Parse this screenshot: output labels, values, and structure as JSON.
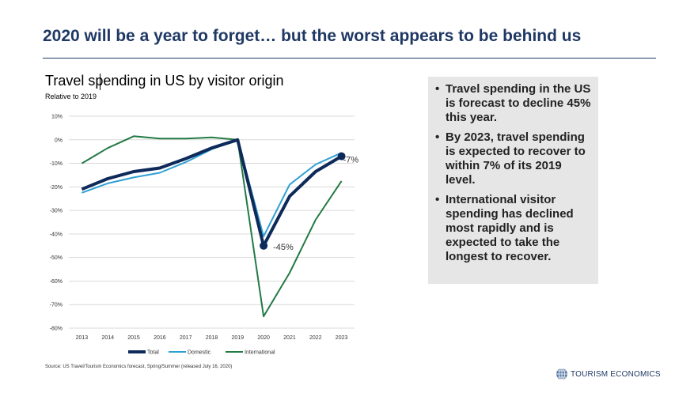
{
  "slide": {
    "title": "2020 will be a year to forget… but the worst appears to be behind us",
    "source": "Source: US Travel/Tourism Economics forecast, Spring/Summer (released July 16, 2020)",
    "logo_text": "TOURISM ECONOMICS",
    "logo_icon": "globe-icon"
  },
  "bullets": [
    "Travel spending in the US is forecast to decline 45% this year.",
    "By 2023, travel spending is expected to recover to within 7% of its 2019 level.",
    "International visitor spending has declined most rapidly and is expected to take the longest to recover."
  ],
  "chart_data": {
    "type": "line",
    "title": "Travel spending in US by visitor origin",
    "subtitle": "Relative to 2019",
    "categories": [
      "2013",
      "2014",
      "2015",
      "2016",
      "2017",
      "2018",
      "2019",
      "2020",
      "2021",
      "2022",
      "2023"
    ],
    "y_ticks": [
      "10%",
      "0%",
      "-10%",
      "-20%",
      "-30%",
      "-40%",
      "-50%",
      "-60%",
      "-70%",
      "-80%"
    ],
    "ylim": [
      -80,
      10
    ],
    "grid": true,
    "legend_position": "bottom",
    "series": [
      {
        "name": "Total",
        "color": "#0d2a5a",
        "values": [
          -21,
          -16.5,
          -13.5,
          -12,
          -8,
          -3.5,
          0,
          -45,
          -24,
          -13.5,
          -7
        ]
      },
      {
        "name": "Domestic",
        "color": "#2fa0d4",
        "values": [
          -22.5,
          -18.5,
          -16,
          -14,
          -9.5,
          -4,
          0,
          -41,
          -19,
          -10.5,
          -5.5
        ]
      },
      {
        "name": "International",
        "color": "#237a45",
        "values": [
          -10,
          -3.5,
          1.5,
          0.5,
          0.5,
          1,
          0,
          -75,
          -56.5,
          -34,
          -17.5
        ]
      }
    ],
    "annotations": [
      {
        "text": "-45%",
        "category": "2020",
        "value": -45
      },
      {
        "text": "-7%",
        "category": "2023",
        "value": -7
      }
    ]
  }
}
